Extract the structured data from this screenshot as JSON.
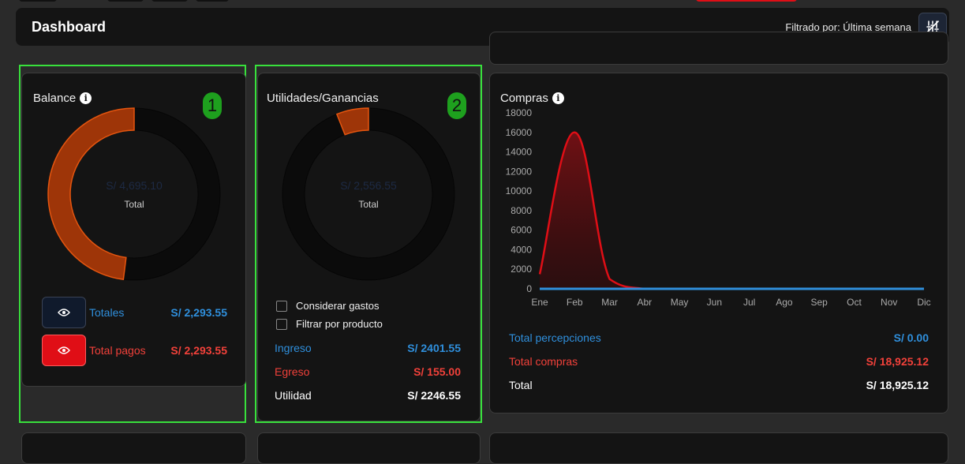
{
  "header": {
    "title": "Dashboard",
    "filter_label": "Filtrado por: Última semana",
    "filter_icon": "sliders-icon"
  },
  "balance": {
    "title": "Balance",
    "badge": "1",
    "center_value": "S/ 4,695.10",
    "center_label": "Total",
    "arc_fraction": 0.48,
    "arc_color": "#9e3508",
    "rows": [
      {
        "label": "Totales",
        "value": "S/ 2,293.55",
        "button_color": "#101a2c"
      },
      {
        "label": "Total pagos",
        "value": "S/ 2,293.55",
        "button_color": "#e00e16"
      }
    ]
  },
  "utilidades": {
    "title": "Utilidades/Ganancias",
    "badge": "2",
    "center_value": "S/ 2,556.55",
    "center_label": "Total",
    "arc_fraction": 0.06,
    "arc_color": "#9e3508",
    "checkboxes": [
      {
        "label": "Considerar gastos",
        "checked": false
      },
      {
        "label": "Filtrar por producto",
        "checked": false
      }
    ],
    "rows": [
      {
        "label": "Ingreso",
        "value": "S/ 2401.55"
      },
      {
        "label": "Egreso",
        "value": "S/ 155.00"
      },
      {
        "label": "Utilidad",
        "value": "S/ 2246.55"
      }
    ]
  },
  "compras": {
    "title": "Compras",
    "totals": [
      {
        "label": "Total percepciones",
        "value": "S/ 0.00"
      },
      {
        "label": "Total compras",
        "value": "S/ 18,925.12"
      },
      {
        "label": "Total",
        "value": "S/ 18,925.12"
      }
    ]
  },
  "chart_data": {
    "type": "area",
    "categories": [
      "Ene",
      "Feb",
      "Mar",
      "Abr",
      "May",
      "Jun",
      "Jul",
      "Ago",
      "Sep",
      "Oct",
      "Nov",
      "Dic"
    ],
    "ylim": [
      0,
      18000
    ],
    "yticks": [
      0,
      2000,
      4000,
      6000,
      8000,
      10000,
      12000,
      14000,
      16000,
      18000
    ],
    "series": [
      {
        "color": "#e00e16",
        "values": [
          1500,
          16000,
          1000,
          0,
          0,
          0,
          0,
          0,
          0,
          0,
          0,
          0
        ]
      },
      {
        "color": "#2f8fdc",
        "values": [
          0,
          0,
          0,
          0,
          0,
          0,
          0,
          0,
          0,
          0,
          0,
          0
        ]
      }
    ]
  }
}
